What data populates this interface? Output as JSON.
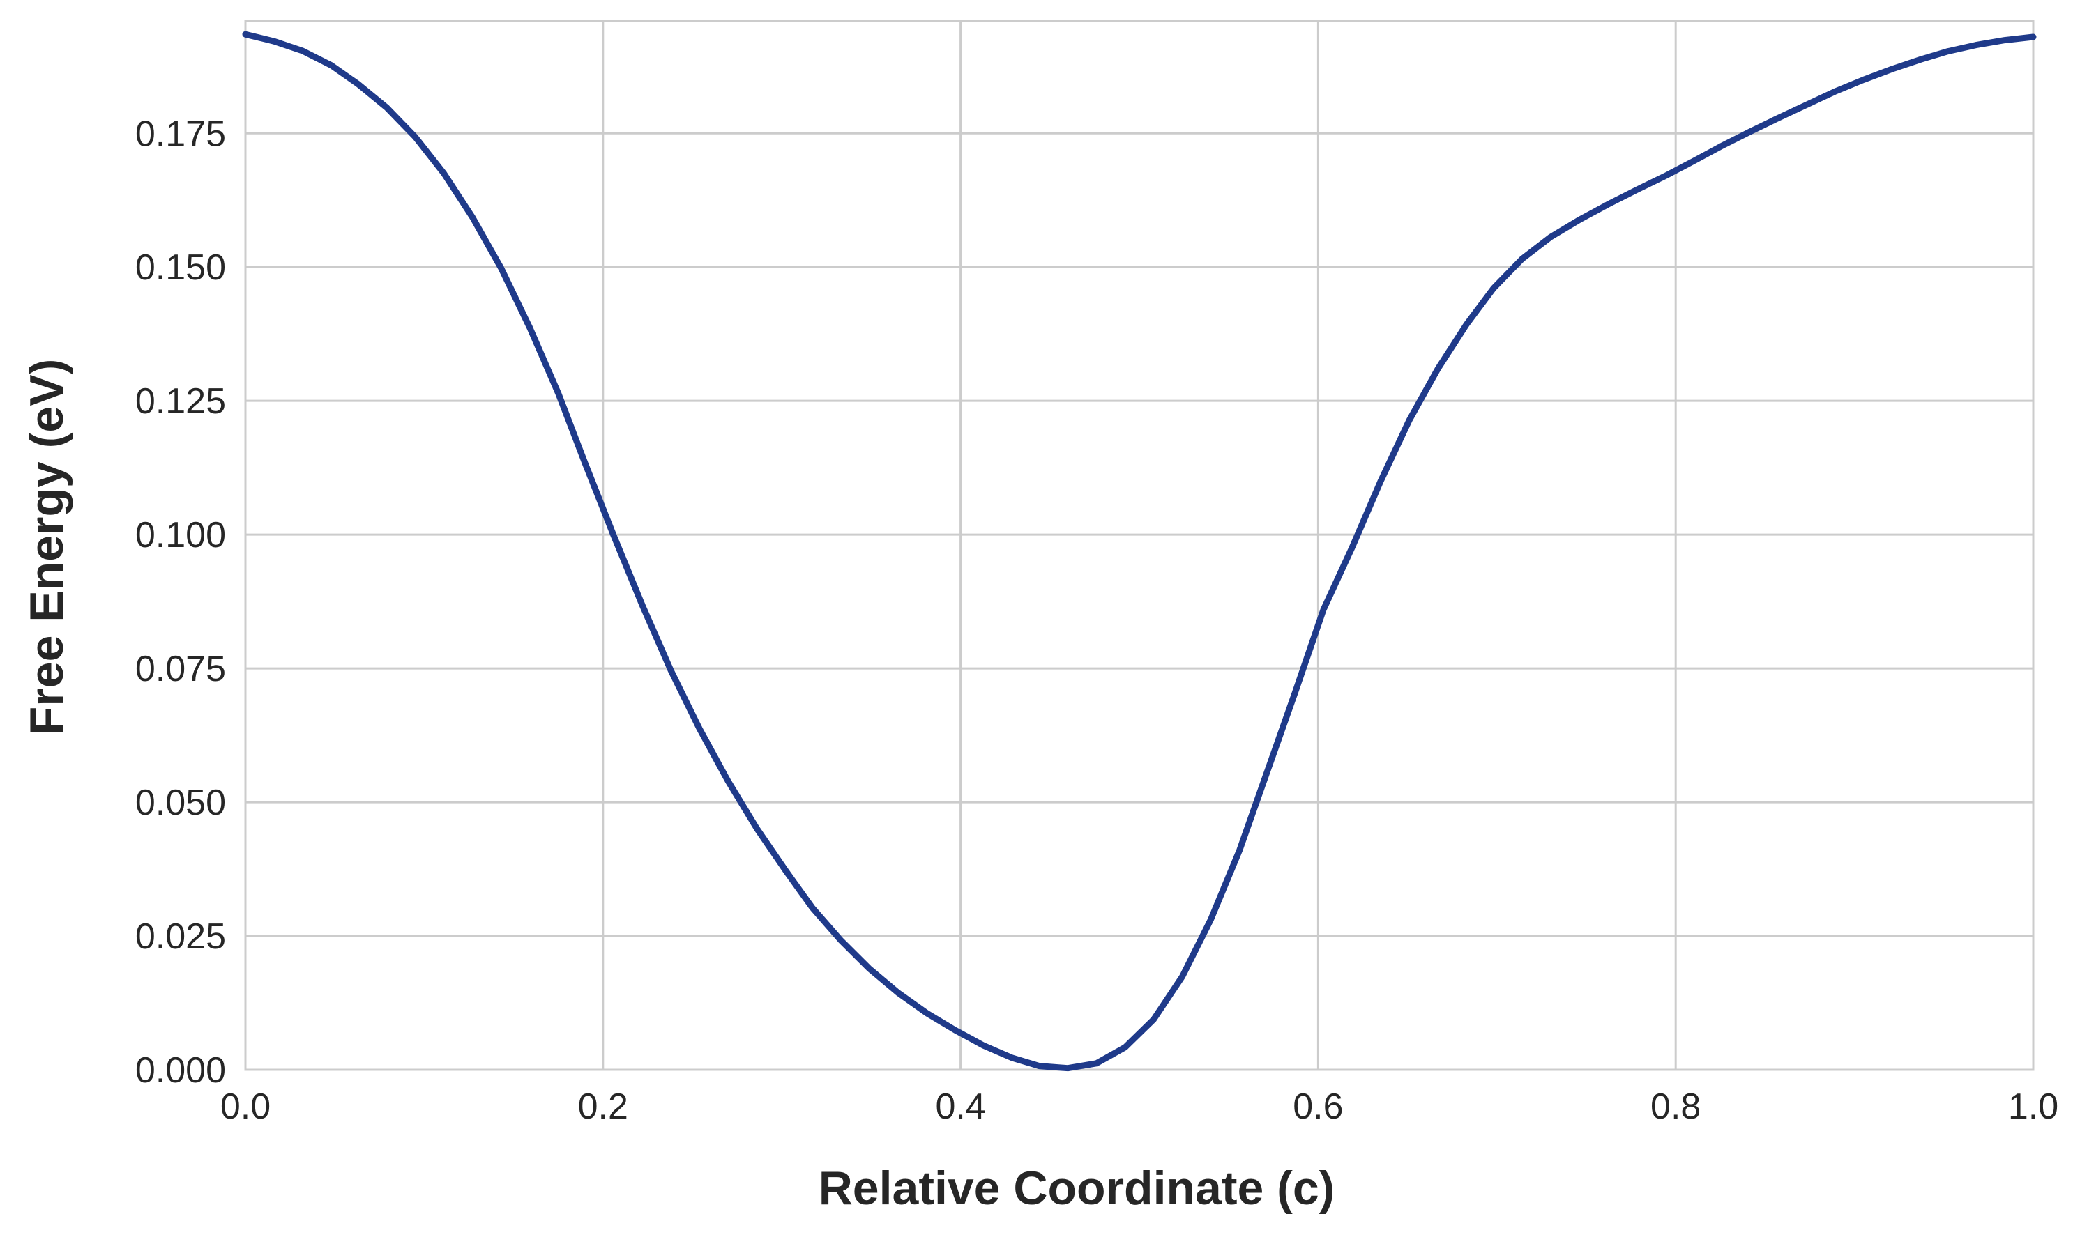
{
  "chart_data": {
    "type": "line",
    "title": "",
    "xlabel": "Relative Coordinate (c)",
    "ylabel": "Free Energy (eV)",
    "xlim": [
      0.0,
      1.0
    ],
    "ylim": [
      0.0,
      0.196
    ],
    "xticks": [
      0.0,
      0.2,
      0.4,
      0.6,
      0.8,
      1.0
    ],
    "xtick_labels": [
      "0.0",
      "0.2",
      "0.4",
      "0.6",
      "0.8",
      "1.0"
    ],
    "yticks": [
      0.0,
      0.025,
      0.05,
      0.075,
      0.1,
      0.125,
      0.15,
      0.175
    ],
    "ytick_labels": [
      "0.000",
      "0.025",
      "0.050",
      "0.075",
      "0.100",
      "0.125",
      "0.150",
      "0.175"
    ],
    "grid": true,
    "legend": "none",
    "series": [
      {
        "color": "#1f3a8a",
        "x": [
          0.0,
          0.016,
          0.032,
          0.048,
          0.063,
          0.079,
          0.095,
          0.111,
          0.127,
          0.143,
          0.159,
          0.175,
          0.19,
          0.206,
          0.222,
          0.238,
          0.254,
          0.27,
          0.286,
          0.302,
          0.317,
          0.333,
          0.349,
          0.365,
          0.381,
          0.397,
          0.413,
          0.429,
          0.444,
          0.46,
          0.476,
          0.492,
          0.508,
          0.524,
          0.54,
          0.556,
          0.571,
          0.587,
          0.603,
          0.619,
          0.635,
          0.651,
          0.667,
          0.683,
          0.698,
          0.714,
          0.73,
          0.746,
          0.762,
          0.778,
          0.794,
          0.81,
          0.825,
          0.841,
          0.857,
          0.873,
          0.889,
          0.905,
          0.921,
          0.937,
          0.952,
          0.968,
          0.984,
          1.0
        ],
        "y": [
          0.1935,
          0.1922,
          0.1904,
          0.1877,
          0.1842,
          0.1798,
          0.1743,
          0.1675,
          0.1593,
          0.1498,
          0.1387,
          0.1264,
          0.1133,
          0.0998,
          0.0868,
          0.0746,
          0.0637,
          0.0539,
          0.0451,
          0.0373,
          0.0303,
          0.0242,
          0.0189,
          0.0144,
          0.0106,
          0.0074,
          0.0045,
          0.0022,
          0.0007,
          0.0003,
          0.0012,
          0.0042,
          0.0094,
          0.0174,
          0.0281,
          0.041,
          0.0552,
          0.0704,
          0.086,
          0.0976,
          0.11,
          0.1214,
          0.131,
          0.1393,
          0.146,
          0.1515,
          0.1556,
          0.1588,
          0.1617,
          0.1644,
          0.167,
          0.1698,
          0.1725,
          0.1752,
          0.1778,
          0.1803,
          0.1828,
          0.185,
          0.187,
          0.1888,
          0.1903,
          0.1915,
          0.1924,
          0.193
        ]
      }
    ]
  }
}
